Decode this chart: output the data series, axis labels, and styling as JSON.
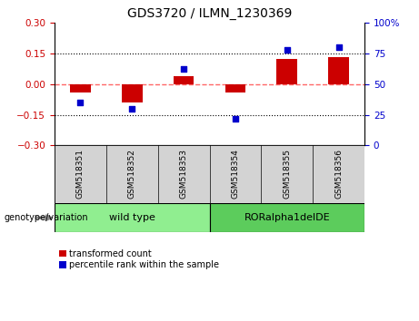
{
  "title": "GDS3720 / ILMN_1230369",
  "samples": [
    "GSM518351",
    "GSM518352",
    "GSM518353",
    "GSM518354",
    "GSM518355",
    "GSM518356"
  ],
  "red_values": [
    -0.04,
    -0.09,
    0.04,
    -0.04,
    0.12,
    0.13
  ],
  "blue_values": [
    35,
    30,
    62,
    22,
    78,
    80
  ],
  "ylim_left": [
    -0.3,
    0.3
  ],
  "ylim_right": [
    0,
    100
  ],
  "yticks_left": [
    -0.3,
    -0.15,
    0,
    0.15,
    0.3
  ],
  "yticks_right": [
    0,
    25,
    50,
    75,
    100
  ],
  "hlines": [
    0.15,
    -0.15
  ],
  "groups": [
    {
      "label": "wild type",
      "indices": [
        0,
        1,
        2
      ],
      "color": "#90EE90"
    },
    {
      "label": "RORalpha1delDE",
      "indices": [
        3,
        4,
        5
      ],
      "color": "#5CCC5C"
    }
  ],
  "bar_color": "#CC0000",
  "dot_color": "#0000CC",
  "zero_line_color": "#FF6666",
  "hline_color": "#000000",
  "bg_color": "#FFFFFF",
  "legend_items": [
    "transformed count",
    "percentile rank within the sample"
  ],
  "genotype_label": "genotype/variation"
}
